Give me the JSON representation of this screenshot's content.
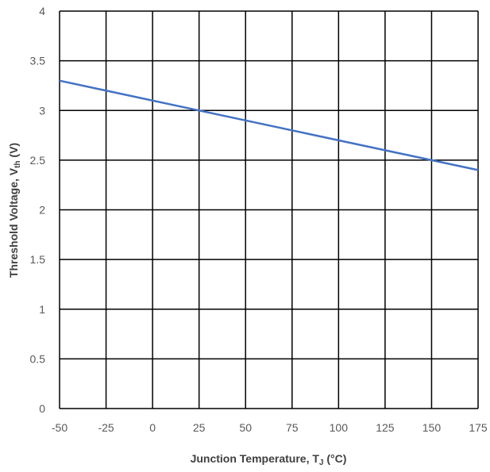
{
  "chart_data": {
    "type": "line",
    "xlabel": {
      "main": "Junction Temperature, T",
      "sub": "J",
      "post": " (°C)"
    },
    "ylabel": {
      "main": "Threshold Voltage, V",
      "sub": "th",
      "post": " (V)"
    },
    "xlim": [
      -50,
      175
    ],
    "ylim": [
      0,
      4
    ],
    "x_ticks": [
      -50,
      -25,
      0,
      25,
      50,
      75,
      100,
      125,
      150,
      175
    ],
    "y_ticks": [
      0,
      0.5,
      1,
      1.5,
      2,
      2.5,
      3,
      3.5,
      4
    ],
    "grid": true,
    "series": [
      {
        "color": "#4472c4",
        "x": [
          -50,
          25,
          150,
          175
        ],
        "y": [
          3.3,
          3.0,
          2.5,
          2.4
        ]
      }
    ]
  }
}
